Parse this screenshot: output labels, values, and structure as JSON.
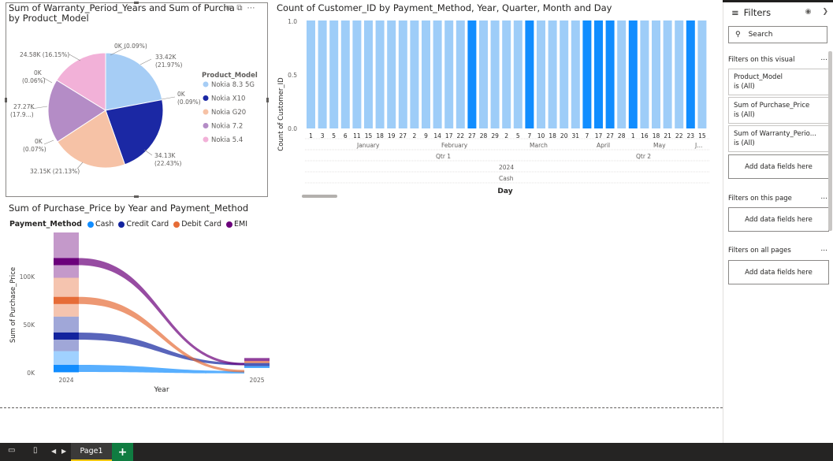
{
  "pie_visual": {
    "title_line1": "Sum of Warranty_Period_Years and Sum of Purcha",
    "title_line2": "by Product_Model",
    "legend_title": "Product_Model",
    "colors": {
      "Nokia 8.3 5G": "#a6cdf5",
      "Nokia X10": "#1b28a4",
      "Nokia G20": "#f6c2a6",
      "Nokia 7.2": "#b48cc6",
      "Nokia 5.4": "#f2b1d8"
    },
    "legend": [
      "Nokia 8.3 5G",
      "Nokia X10",
      "Nokia G20",
      "Nokia 7.2",
      "Nokia 5.4"
    ],
    "labels": {
      "l1": "0K (0.09%)",
      "l2a": "33.42K",
      "l2b": "(21.97%)",
      "l3a": "0K",
      "l3b": "(0.09%)",
      "l4a": "34.13K",
      "l4b": "(22.43%)",
      "l5": "32.15K (21.13%)",
      "l6a": "0K",
      "l6b": "(0.07%)",
      "l7a": "27.27K",
      "l7b": "(17.9...)",
      "l8a": "0K",
      "l8b": "(0.06%)",
      "l9": "24.58K (16.15%)"
    }
  },
  "bar_visual": {
    "title": "Count of Customer_ID by Payment_Method, Year, Quarter, Month and Day",
    "ylabel": "Count of Customer_ID",
    "yticks": [
      "1.0",
      "0.5",
      "0.0"
    ],
    "day_labels": [
      "1",
      "3",
      "5",
      "6",
      "11",
      "15",
      "18",
      "19",
      "27",
      "2",
      "9",
      "14",
      "17",
      "22",
      "27",
      "28",
      "29",
      "2",
      "5",
      "7",
      "10",
      "18",
      "20",
      "31",
      "7",
      "17",
      "27",
      "28",
      "1",
      "16",
      "18",
      "21",
      "22",
      "23",
      "15"
    ],
    "months": [
      "January",
      "February",
      "March",
      "April",
      "May",
      "J..."
    ],
    "quarters": [
      "Qtr 1",
      "Qtr 2"
    ],
    "year": "2024",
    "method": "Cash",
    "xlabel": "Day"
  },
  "ribbon_visual": {
    "title": "Sum of Purchase_Price by Year and Payment_Method",
    "legend_title": "Payment_Method",
    "legend": [
      {
        "name": "Cash",
        "color": "#118dff"
      },
      {
        "name": "Credit Card",
        "color": "#12239e"
      },
      {
        "name": "Debit Card",
        "color": "#e66c37"
      },
      {
        "name": "EMI",
        "color": "#6b007b"
      }
    ],
    "ylabel": "Sum of Purchase_Price",
    "yticks": [
      "100K",
      "50K",
      "0K"
    ],
    "xticks": [
      "2024",
      "2025"
    ],
    "xlabel": "Year"
  },
  "chart_data": [
    {
      "type": "pie",
      "title": "Sum of Warranty_Period_Years and Sum of Purcha by Product_Model",
      "legend_title": "Product_Model",
      "slices": [
        {
          "name": "Nokia 8.3 5G",
          "value": 33.42,
          "pct": 21.97
        },
        {
          "name": "Nokia X10",
          "value": 34.13,
          "pct": 22.43
        },
        {
          "name": "Nokia G20",
          "value": 32.15,
          "pct": 21.13
        },
        {
          "name": "Nokia 7.2",
          "value": 27.27,
          "pct": 17.9
        },
        {
          "name": "Nokia 5.4",
          "value": 24.58,
          "pct": 16.15
        }
      ],
      "unit": "K"
    },
    {
      "type": "bar",
      "title": "Count of Customer_ID by Payment_Method, Year, Quarter, Month and Day",
      "ylabel": "Count of Customer_ID",
      "xlabel": "Day",
      "ylim": [
        0,
        1
      ],
      "categories": [
        "1",
        "3",
        "5",
        "6",
        "11",
        "15",
        "18",
        "19",
        "27",
        "2",
        "9",
        "14",
        "17",
        "22",
        "27",
        "28",
        "29",
        "2",
        "5",
        "7",
        "10",
        "18",
        "20",
        "31",
        "7",
        "17",
        "27",
        "28",
        "1",
        "16",
        "18",
        "21",
        "22",
        "23",
        "15"
      ],
      "values": [
        1,
        1,
        1,
        1,
        1,
        1,
        1,
        1,
        1,
        1,
        1,
        1,
        1,
        1,
        1,
        1,
        1,
        1,
        1,
        1,
        1,
        1,
        1,
        1,
        1,
        1,
        1,
        1,
        1,
        1,
        1,
        1,
        1,
        1,
        1
      ],
      "highlighted": [
        false,
        false,
        false,
        false,
        false,
        false,
        false,
        false,
        false,
        false,
        false,
        false,
        false,
        false,
        true,
        false,
        false,
        false,
        false,
        true,
        false,
        false,
        false,
        false,
        true,
        true,
        true,
        false,
        true,
        false,
        false,
        false,
        false,
        true,
        false
      ]
    },
    {
      "type": "area",
      "title": "Sum of Purchase_Price by Year and Payment_Method",
      "xlabel": "Year",
      "ylabel": "Sum of Purchase_Price",
      "categories": [
        "2024",
        "2025"
      ],
      "ylim": [
        0,
        130000
      ],
      "series": [
        {
          "name": "Cash",
          "values": [
            4000,
            500
          ]
        },
        {
          "name": "Credit Card",
          "values": [
            34000,
            8000
          ]
        },
        {
          "name": "Debit Card",
          "values": [
            67000,
            1500
          ]
        },
        {
          "name": "EMI",
          "values": [
            103000,
            8000
          ]
        }
      ]
    }
  ],
  "filters": {
    "header": "Filters",
    "search_placeholder": "Search",
    "on_visual": "Filters on this visual",
    "cards": [
      {
        "field": "Product_Model",
        "value": "is (All)"
      },
      {
        "field": "Sum of Purchase_Price",
        "value": "is (All)"
      },
      {
        "field": "Sum of Warranty_Perio...",
        "value": "is (All)"
      }
    ],
    "add_here": "Add data fields here",
    "on_page": "Filters on this page",
    "on_all": "Filters on all pages",
    "more": "..."
  },
  "bottom": {
    "page_tab": "Page1",
    "add": "+"
  }
}
